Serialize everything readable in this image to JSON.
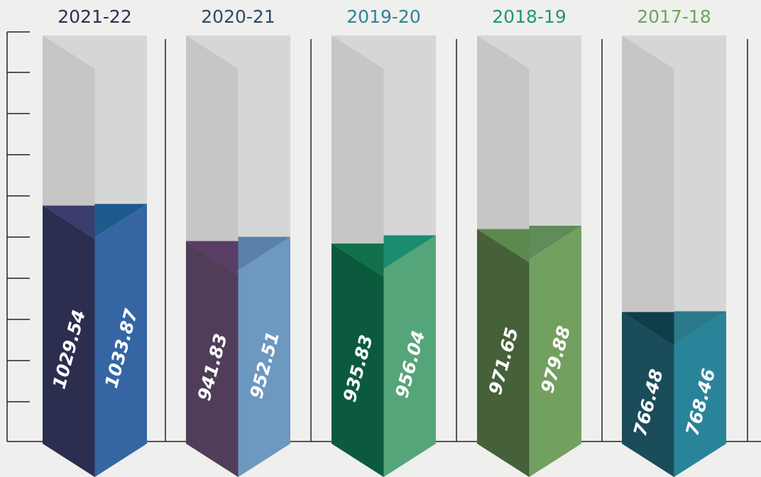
{
  "chart_data": {
    "type": "bar3d",
    "categories": [
      "2021-22",
      "2020-21",
      "2019-20",
      "2018-19",
      "2017-18"
    ],
    "category_colors": [
      "#2e2f55",
      "#2e4a6a",
      "#2a8498",
      "#1a9a70",
      "#6aa85a"
    ],
    "ylim": [
      450,
      1450
    ],
    "series": [
      {
        "values": [
          1029.54,
          941.83,
          935.83,
          971.65,
          766.48
        ],
        "colors": [
          "#2c2e50",
          "#4f3d5a",
          "#0b5a3e",
          "#46613a",
          "#1a4c5a"
        ],
        "cap_colors": [
          "#3a3d6e",
          "#5a3d66",
          "#12704a",
          "#5b8a4e",
          "#0f3e4a"
        ]
      },
      {
        "values": [
          1033.87,
          952.51,
          956.04,
          979.88,
          768.46
        ],
        "colors": [
          "#3566a3",
          "#6d98c0",
          "#55a57a",
          "#72a060",
          "#2a8499"
        ],
        "cap_colors": [
          "#1e5a8c",
          "#5a80a8",
          "#1a8c70",
          "#5f8c5a",
          "#2a7a8c"
        ]
      }
    ]
  }
}
